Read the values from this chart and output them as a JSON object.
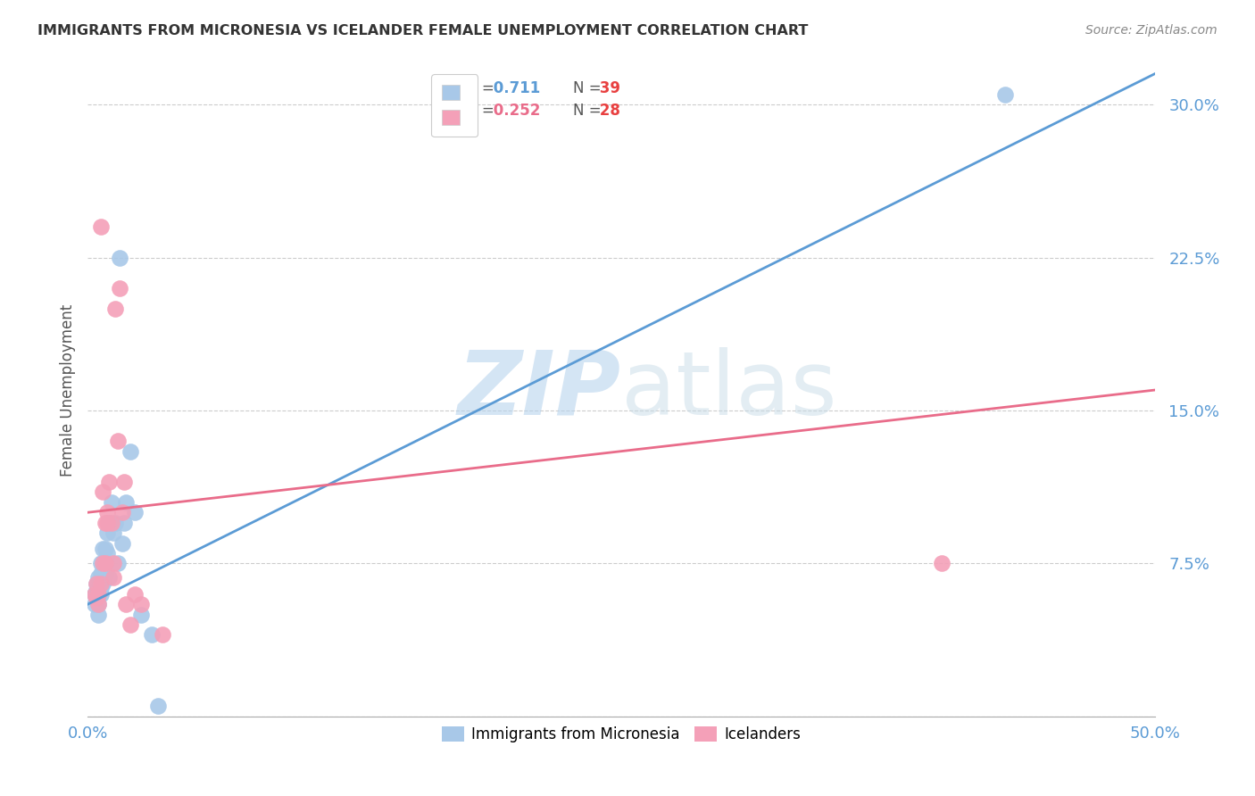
{
  "title": "IMMIGRANTS FROM MICRONESIA VS ICELANDER FEMALE UNEMPLOYMENT CORRELATION CHART",
  "source": "Source: ZipAtlas.com",
  "ylabel": "Female Unemployment",
  "yticks": [
    0.0,
    0.075,
    0.15,
    0.225,
    0.3
  ],
  "ytick_labels": [
    "",
    "7.5%",
    "15.0%",
    "22.5%",
    "30.0%"
  ],
  "xlim": [
    0.0,
    0.5
  ],
  "ylim": [
    0.0,
    0.32
  ],
  "legend_r1": "0.711",
  "legend_n1": "39",
  "legend_r2": "0.252",
  "legend_n2": "28",
  "label1": "Immigrants from Micronesia",
  "label2": "Icelanders",
  "color1": "#a8c8e8",
  "color2": "#f4a0b8",
  "trendline1_color": "#5b9bd5",
  "trendline2_color": "#e96c8a",
  "watermark_zip": "ZIP",
  "watermark_atlas": "atlas",
  "blue_points_x": [
    0.003,
    0.003,
    0.004,
    0.004,
    0.004,
    0.005,
    0.005,
    0.005,
    0.005,
    0.005,
    0.006,
    0.006,
    0.006,
    0.006,
    0.007,
    0.007,
    0.007,
    0.007,
    0.008,
    0.008,
    0.008,
    0.009,
    0.009,
    0.01,
    0.01,
    0.011,
    0.012,
    0.013,
    0.014,
    0.015,
    0.016,
    0.017,
    0.018,
    0.02,
    0.022,
    0.025,
    0.03,
    0.033,
    0.43
  ],
  "blue_points_y": [
    0.055,
    0.06,
    0.058,
    0.062,
    0.065,
    0.062,
    0.06,
    0.068,
    0.055,
    0.05,
    0.063,
    0.07,
    0.075,
    0.06,
    0.068,
    0.075,
    0.082,
    0.065,
    0.075,
    0.082,
    0.07,
    0.08,
    0.09,
    0.095,
    0.068,
    0.105,
    0.09,
    0.095,
    0.075,
    0.225,
    0.085,
    0.095,
    0.105,
    0.13,
    0.1,
    0.05,
    0.04,
    0.005,
    0.305
  ],
  "pink_points_x": [
    0.003,
    0.004,
    0.004,
    0.005,
    0.005,
    0.006,
    0.006,
    0.007,
    0.007,
    0.008,
    0.008,
    0.009,
    0.009,
    0.01,
    0.011,
    0.012,
    0.012,
    0.013,
    0.014,
    0.015,
    0.016,
    0.017,
    0.018,
    0.02,
    0.022,
    0.025,
    0.035,
    0.4
  ],
  "pink_points_y": [
    0.06,
    0.058,
    0.065,
    0.055,
    0.06,
    0.065,
    0.24,
    0.075,
    0.11,
    0.075,
    0.095,
    0.095,
    0.1,
    0.115,
    0.095,
    0.068,
    0.075,
    0.2,
    0.135,
    0.21,
    0.1,
    0.115,
    0.055,
    0.045,
    0.06,
    0.055,
    0.04,
    0.075
  ],
  "trendline1_x": [
    0.0,
    0.5
  ],
  "trendline1_y": [
    0.055,
    0.315
  ],
  "trendline2_x": [
    0.0,
    0.5
  ],
  "trendline2_y": [
    0.1,
    0.16
  ]
}
